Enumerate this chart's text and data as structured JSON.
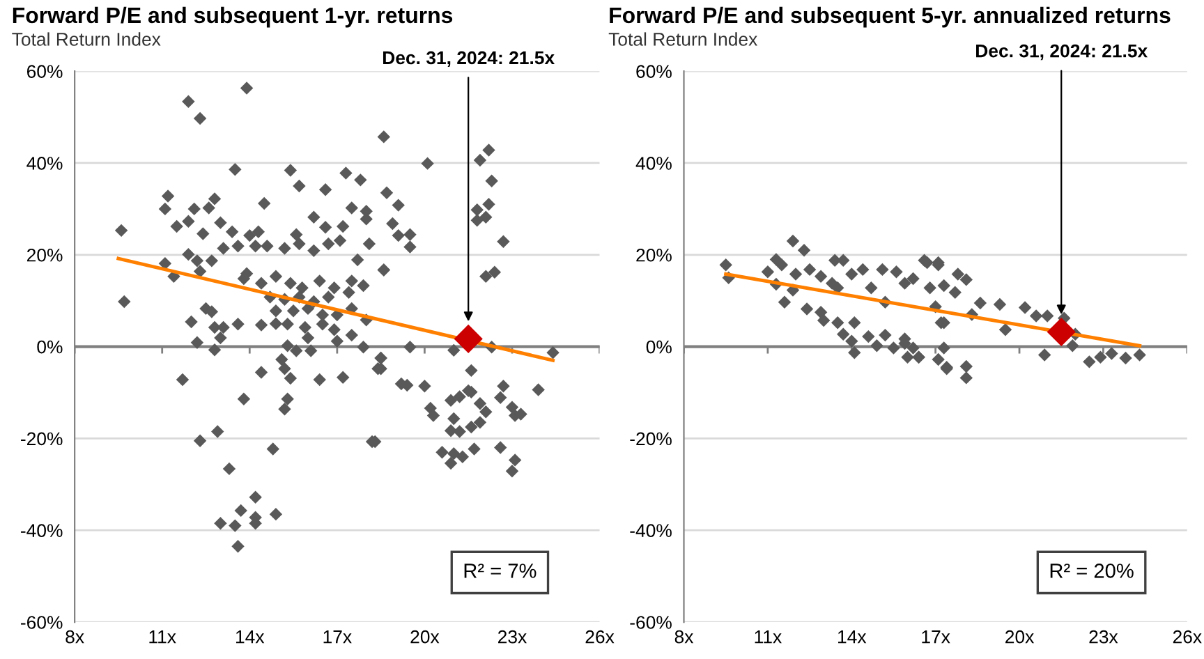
{
  "chart_data": [
    {
      "type": "scatter",
      "title": "Forward P/E and subsequent 1-yr. returns",
      "subtitle": "Total Return Index",
      "xlim": [
        8,
        26
      ],
      "xticks": [
        {
          "value": 8,
          "label": "8x"
        },
        {
          "value": 11,
          "label": "11x"
        },
        {
          "value": 14,
          "label": "14x"
        },
        {
          "value": 17,
          "label": "17x"
        },
        {
          "value": 20,
          "label": "20x"
        },
        {
          "value": 23,
          "label": "23x"
        },
        {
          "value": 26,
          "label": "26x"
        }
      ],
      "ylim": [
        -60,
        60
      ],
      "yticks": [
        {
          "value": 60,
          "label": "60%"
        },
        {
          "value": 40,
          "label": "40%"
        },
        {
          "value": 20,
          "label": "20%"
        },
        {
          "value": 0,
          "label": "0%"
        },
        {
          "value": -20,
          "label": "-20%"
        },
        {
          "value": -40,
          "label": "-40%"
        },
        {
          "value": -60,
          "label": "-60%"
        }
      ],
      "grid": "y",
      "legend": false,
      "ref_lines": [
        {
          "axis": "y",
          "value": 0,
          "color": "#808080"
        }
      ],
      "annotations": [
        "Dec. 31, 2024: 21.5x",
        "R² = 7%"
      ],
      "series": [
        {
          "type": "scatter",
          "marker": "diamond",
          "color": "#595959",
          "x": [
            9.6,
            9.7,
            11.9,
            12.3,
            13.9,
            18.6,
            13.5,
            15.4,
            15.7,
            17.3,
            17.8,
            16.6,
            11.2,
            11.1,
            12.8,
            14.5,
            12.1,
            12.6,
            11.5,
            11.9,
            12.4,
            13.0,
            13.4,
            14.0,
            14.3,
            16.2,
            17.5,
            18.0,
            18.0,
            16.6,
            17.2,
            15.6,
            11.1,
            11.4,
            11.9,
            12.2,
            12.3,
            12.7,
            13.1,
            13.6,
            14.2,
            13.9,
            14.6,
            15.2,
            15.7,
            16.2,
            16.7,
            17.1,
            17.7,
            18.1,
            18.6,
            13.8,
            14.4,
            14.9,
            15.4,
            15.8,
            16.4,
            16.9,
            17.5,
            17.9,
            14.7,
            15.2,
            15.7,
            16.2,
            16.7,
            17.4,
            14.9,
            15.5,
            16.0,
            16.5,
            17.0,
            17.5,
            18.0,
            12.5,
            12.7,
            12.0,
            12.8,
            13.1,
            13.6,
            14.4,
            14.9,
            15.3,
            15.9,
            16.5,
            16.9,
            12.2,
            13.0,
            12.8,
            15.3,
            16.0,
            17.0,
            17.5,
            15.6,
            16.1,
            17.9,
            15.1,
            15.2,
            15.4,
            14.4,
            11.7,
            16.4,
            17.2,
            18.5,
            18.4,
            13.8,
            15.3,
            15.2,
            12.9,
            12.3,
            14.8,
            18.2,
            13.3,
            14.2,
            13.7,
            14.2,
            13.0,
            13.5,
            14.2,
            14.9,
            13.6,
            20.1,
            21.9,
            22.2,
            22.3,
            21.8,
            22.2,
            22.1,
            21.8,
            22.7,
            22.4,
            22.1,
            18.7,
            19.1,
            18.9,
            19.1,
            19.5,
            19.5,
            18.6,
            19.5,
            21.0,
            22.3,
            24.4,
            18.5,
            18.5,
            19.2,
            19.4,
            20.0,
            21.6,
            22.7,
            23.9,
            21.5,
            21.6,
            20.9,
            21.2,
            21.9,
            22.6,
            20.2,
            20.3,
            21.0,
            22.1,
            23.0,
            23.1,
            23.3,
            20.9,
            21.2,
            21.6,
            21.9,
            18.3,
            20.6,
            21.0,
            20.9,
            21.3,
            21.7,
            22.6,
            23.1,
            23.0
          ],
          "values": [
            25.3,
            9.8,
            53.4,
            49.7,
            56.3,
            45.7,
            38.6,
            38.4,
            35.0,
            37.8,
            36.3,
            34.2,
            32.8,
            30.0,
            32.2,
            31.2,
            30.0,
            30.2,
            26.2,
            27.3,
            24.6,
            27.0,
            25.0,
            24.2,
            25.0,
            28.2,
            30.2,
            29.5,
            27.8,
            26.0,
            26.2,
            24.4,
            18.1,
            15.3,
            20.1,
            18.7,
            16.4,
            18.7,
            21.4,
            21.9,
            21.9,
            15.9,
            21.9,
            21.4,
            22.4,
            20.9,
            22.4,
            23.1,
            18.9,
            22.4,
            16.7,
            14.8,
            13.8,
            15.3,
            13.8,
            12.8,
            14.3,
            12.8,
            14.3,
            13.3,
            10.8,
            10.3,
            10.8,
            9.8,
            10.8,
            11.8,
            7.8,
            7.8,
            8.3,
            6.9,
            6.9,
            8.3,
            5.8,
            8.3,
            7.6,
            5.4,
            4.2,
            4.2,
            4.9,
            4.7,
            5.0,
            4.9,
            4.2,
            4.9,
            3.7,
            0.9,
            1.9,
            -0.7,
            0.2,
            1.9,
            1.2,
            2.5,
            -0.9,
            -0.9,
            -0.1,
            -2.8,
            -4.8,
            -6.9,
            -5.6,
            -7.2,
            -7.2,
            -6.7,
            -2.5,
            -4.8,
            -11.4,
            -11.4,
            -13.6,
            -18.5,
            -20.5,
            -22.3,
            -20.7,
            -26.6,
            -32.8,
            -35.7,
            -37.2,
            -38.5,
            -39.0,
            -38.5,
            -36.5,
            -43.5,
            39.9,
            40.6,
            42.8,
            36.1,
            29.8,
            31.0,
            28.2,
            27.5,
            22.9,
            16.2,
            15.3,
            33.5,
            30.8,
            26.8,
            24.2,
            24.4,
            21.7,
            16.7,
            -0.1,
            -0.8,
            -0.1,
            -1.3,
            -2.5,
            -4.8,
            -8.1,
            -8.4,
            -8.6,
            -5.2,
            -8.6,
            -9.4,
            -9.6,
            -9.9,
            -11.7,
            -10.9,
            -12.4,
            -11.1,
            -13.4,
            -15.0,
            -15.7,
            -14.2,
            -13.2,
            -15.0,
            -14.7,
            -18.3,
            -18.5,
            -17.5,
            -16.5,
            -20.7,
            -23.0,
            -23.3,
            -25.4,
            -24.0,
            -22.3,
            -22.0,
            -24.7,
            -27.1
          ]
        },
        {
          "type": "line",
          "marker": "none",
          "color": "#ff8000",
          "x": [
            9.5,
            24.4
          ],
          "values": [
            19.2,
            -3.0
          ]
        },
        {
          "type": "scatter",
          "marker": "diamond",
          "color": "#cc0000",
          "x": [
            21.5
          ],
          "values": [
            1.7
          ]
        }
      ]
    },
    {
      "type": "scatter",
      "title": "Forward P/E and subsequent 5-yr. annualized returns",
      "subtitle": "Total Return Index",
      "xlim": [
        8,
        26
      ],
      "xticks": [
        {
          "value": 8,
          "label": "8x"
        },
        {
          "value": 11,
          "label": "11x"
        },
        {
          "value": 14,
          "label": "14x"
        },
        {
          "value": 17,
          "label": "17x"
        },
        {
          "value": 20,
          "label": "20x"
        },
        {
          "value": 23,
          "label": "23x"
        },
        {
          "value": 26,
          "label": "26x"
        }
      ],
      "ylim": [
        -60,
        60
      ],
      "yticks": [
        {
          "value": 60,
          "label": "60%"
        },
        {
          "value": 40,
          "label": "40%"
        },
        {
          "value": 20,
          "label": "20%"
        },
        {
          "value": 0,
          "label": "0%"
        },
        {
          "value": -20,
          "label": "-20%"
        },
        {
          "value": -40,
          "label": "-40%"
        },
        {
          "value": -60,
          "label": "-60%"
        }
      ],
      "grid": "y",
      "legend": false,
      "ref_lines": [
        {
          "axis": "y",
          "value": 0,
          "color": "#808080"
        }
      ],
      "annotations": [
        "Dec. 31, 2024: 21.5x",
        "R² = 20%"
      ],
      "series": [
        {
          "type": "scatter",
          "marker": "diamond",
          "color": "#595959",
          "x": [
            9.5,
            9.6,
            11.9,
            12.3,
            11.3,
            11.5,
            11.0,
            11.3,
            11.6,
            11.9,
            12.0,
            12.5,
            12.9,
            12.4,
            12.9,
            13.0,
            13.4,
            13.7,
            13.3,
            13.5,
            14.0,
            14.4,
            14.7,
            15.1,
            15.6,
            15.2,
            15.9,
            16.2,
            16.7,
            17.1,
            16.8,
            13.5,
            14.1,
            13.7,
            14.0,
            14.1,
            14.6,
            14.9,
            15.2,
            15.5,
            15.9,
            16.2,
            16.4,
            16.0,
            17.2,
            17.3,
            17.4,
            16.6,
            17.1,
            17.8,
            18.1,
            17.3,
            17.7,
            18.6,
            18.3,
            19.3,
            19.5,
            20.2,
            20.6,
            21.0,
            21.6,
            22.0,
            21.9,
            20.9,
            15.9,
            16.4,
            17.1,
            17.4,
            18.1,
            18.1,
            22.5,
            22.9,
            23.3,
            23.8,
            24.3,
            17.0,
            17.3
          ],
          "values": [
            17.8,
            15.0,
            23.0,
            21.0,
            19.0,
            17.8,
            16.3,
            13.6,
            9.7,
            12.3,
            15.8,
            16.8,
            15.3,
            8.2,
            7.5,
            5.7,
            18.8,
            18.8,
            13.8,
            12.8,
            15.8,
            16.8,
            12.8,
            16.8,
            16.3,
            9.7,
            13.8,
            14.8,
            18.3,
            17.8,
            12.8,
            5.2,
            5.2,
            2.7,
            1.2,
            -1.3,
            2.2,
            0.2,
            2.5,
            -0.3,
            0.7,
            -0.3,
            -2.3,
            -2.3,
            5.2,
            -0.3,
            -4.5,
            18.8,
            18.3,
            15.8,
            14.6,
            13.3,
            11.8,
            9.5,
            7.0,
            9.2,
            3.7,
            8.5,
            6.7,
            6.7,
            6.2,
            2.7,
            0.2,
            -1.8,
            1.7,
            -2.3,
            -2.8,
            -4.8,
            -4.3,
            -6.8,
            -3.3,
            -2.3,
            -1.5,
            -2.5,
            -1.8,
            8.7,
            5.2
          ]
        },
        {
          "type": "line",
          "marker": "none",
          "color": "#ff8000",
          "x": [
            9.5,
            24.3
          ],
          "values": [
            15.8,
            0.2
          ]
        },
        {
          "type": "scatter",
          "marker": "diamond",
          "color": "#cc0000",
          "x": [
            21.5
          ],
          "values": [
            3.2
          ]
        }
      ]
    }
  ]
}
